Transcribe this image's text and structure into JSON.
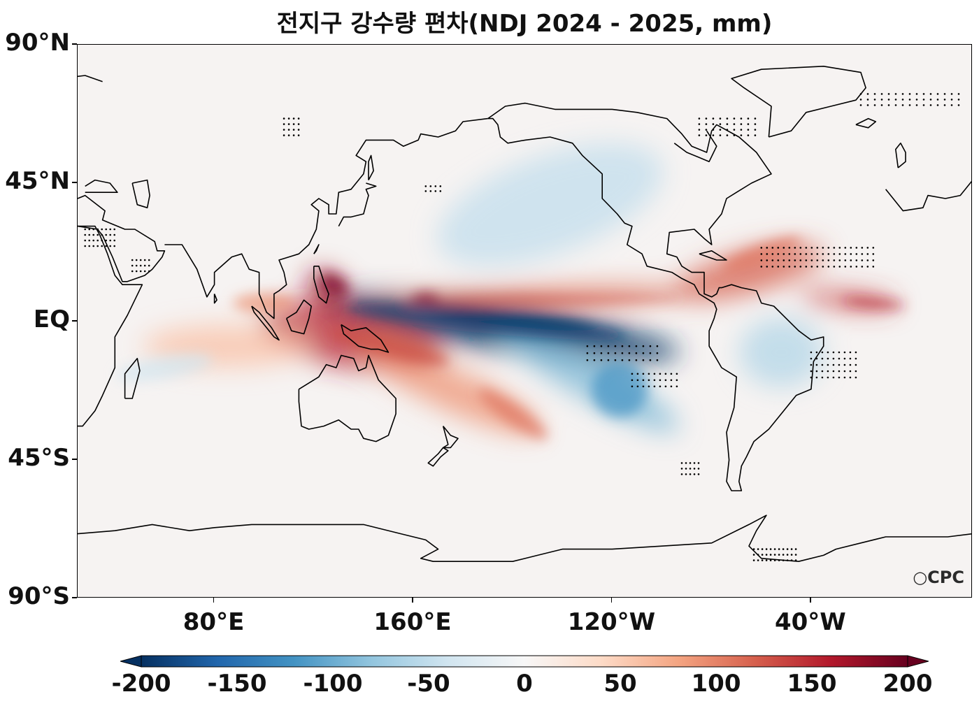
{
  "title": "전지구 강수량 편차(NDJ 2024 - 2025, mm)",
  "logo": "CPC",
  "lat_labels": [
    {
      "text": "90°N",
      "lat": 90
    },
    {
      "text": "45°N",
      "lat": 45
    },
    {
      "text": "EQ",
      "lat": 0
    },
    {
      "text": "45°S",
      "lat": -45
    },
    {
      "text": "90°S",
      "lat": -90
    }
  ],
  "lon_labels": [
    {
      "text": "80°E",
      "lon": 80
    },
    {
      "text": "160°E",
      "lon": 160
    },
    {
      "text": "120°W",
      "lon": 240
    },
    {
      "text": "40°W",
      "lon": 320
    }
  ],
  "colorbar": {
    "min": -200,
    "max": 200,
    "extend": "both",
    "ticks": [
      {
        "text": "-200",
        "value": -200
      },
      {
        "text": "-150",
        "value": -150
      },
      {
        "text": "-100",
        "value": -100
      },
      {
        "text": "-50",
        "value": -50
      },
      {
        "text": "0",
        "value": 0
      },
      {
        "text": "50",
        "value": 50
      },
      {
        "text": "100",
        "value": 100
      },
      {
        "text": "150",
        "value": 150
      },
      {
        "text": "200",
        "value": 200
      }
    ],
    "colormap": [
      "#053061",
      "#2166ac",
      "#4393c3",
      "#92c5de",
      "#d1e5f0",
      "#f7f7f7",
      "#fddbc7",
      "#f4a582",
      "#d6604d",
      "#b2182b",
      "#67001f"
    ]
  },
  "map": {
    "lon_range": [
      25,
      385
    ],
    "lat_range": [
      -90,
      90
    ],
    "anomalies": [
      {
        "name": "central-pacific-deficit",
        "lon": 195,
        "lat": -2,
        "value": -200
      },
      {
        "name": "south-pacific-deficit",
        "lon": 230,
        "lat": -18,
        "value": -90
      },
      {
        "name": "maritime-continent-surplus",
        "lon": 135,
        "lat": -5,
        "value": 150
      },
      {
        "name": "philippines-surplus",
        "lon": 125,
        "lat": 11,
        "value": 170
      },
      {
        "name": "itcz-surplus",
        "lon": 210,
        "lat": 8,
        "value": 110
      },
      {
        "name": "atlantic-itcz-surplus",
        "lon": 335,
        "lat": 7,
        "value": 140
      },
      {
        "name": "caribbean-surplus",
        "lon": 295,
        "lat": 16,
        "value": 120
      },
      {
        "name": "spcz-surplus",
        "lon": 175,
        "lat": -22,
        "value": 90
      },
      {
        "name": "north-pacific-deficit",
        "lon": 215,
        "lat": 38,
        "value": -50
      },
      {
        "name": "brazil-deficit",
        "lon": 308,
        "lat": -10,
        "value": -60
      },
      {
        "name": "indian-ocean-surplus",
        "lon": 85,
        "lat": -8,
        "value": 60
      }
    ]
  }
}
